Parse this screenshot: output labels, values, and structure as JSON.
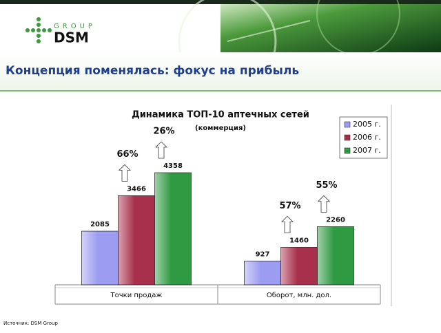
{
  "slide": {
    "logo_group": "GROUP",
    "logo_name": "DSM",
    "title": "Концепция поменялась: фокус на прибыль",
    "source": "Источник: DSM Group"
  },
  "chart_data": {
    "type": "bar",
    "title": "Динамика ТОП-10 аптечных сетей",
    "subtitle": "(коммерция)",
    "categories": [
      "Точки продаж",
      "Оборот, млн. дол."
    ],
    "series": [
      {
        "name": "2005 г.",
        "color": "#9c9cf0",
        "values": [
          2085,
          927
        ]
      },
      {
        "name": "2006 г.",
        "color": "#a8304c",
        "values": [
          3466,
          1460
        ]
      },
      {
        "name": "2007 г.",
        "color": "#2f9a42",
        "values": [
          4358,
          2260
        ]
      }
    ],
    "ylim": [
      0,
      5000
    ],
    "legend": "top-right",
    "annotations": [
      "66%",
      "26%",
      "57%",
      "55%"
    ]
  }
}
